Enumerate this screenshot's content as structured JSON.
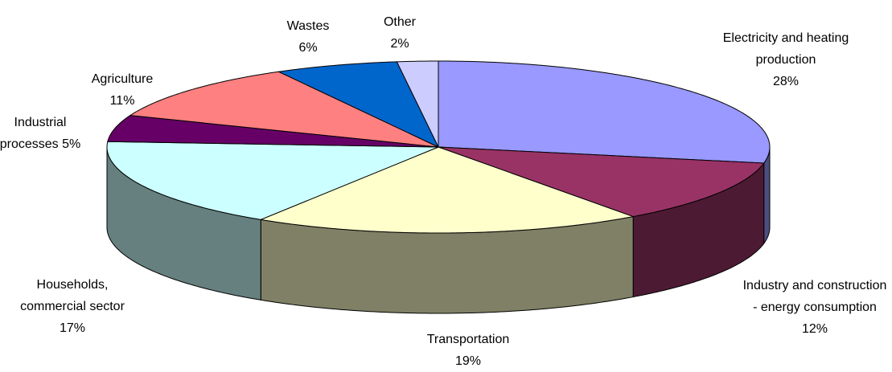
{
  "chart_data": {
    "type": "pie3d",
    "categories": [
      "Electricity and heating production",
      "Industry and construction - energy consumption",
      "Transportation",
      "Households, commercial sector",
      "Industrial processes",
      "Agriculture",
      "Wastes",
      "Other"
    ],
    "values": [
      28,
      12,
      19,
      17,
      5,
      11,
      6,
      2
    ],
    "value_labels": [
      "28%",
      "12%",
      "19%",
      "17%",
      "5%",
      "11%",
      "6%",
      "2%"
    ],
    "colors": [
      "#9999ff",
      "#993366",
      "#ffffcc",
      "#ccffff",
      "#660066",
      "#ff8080",
      "#0066cc",
      "#ccccff"
    ]
  }
}
